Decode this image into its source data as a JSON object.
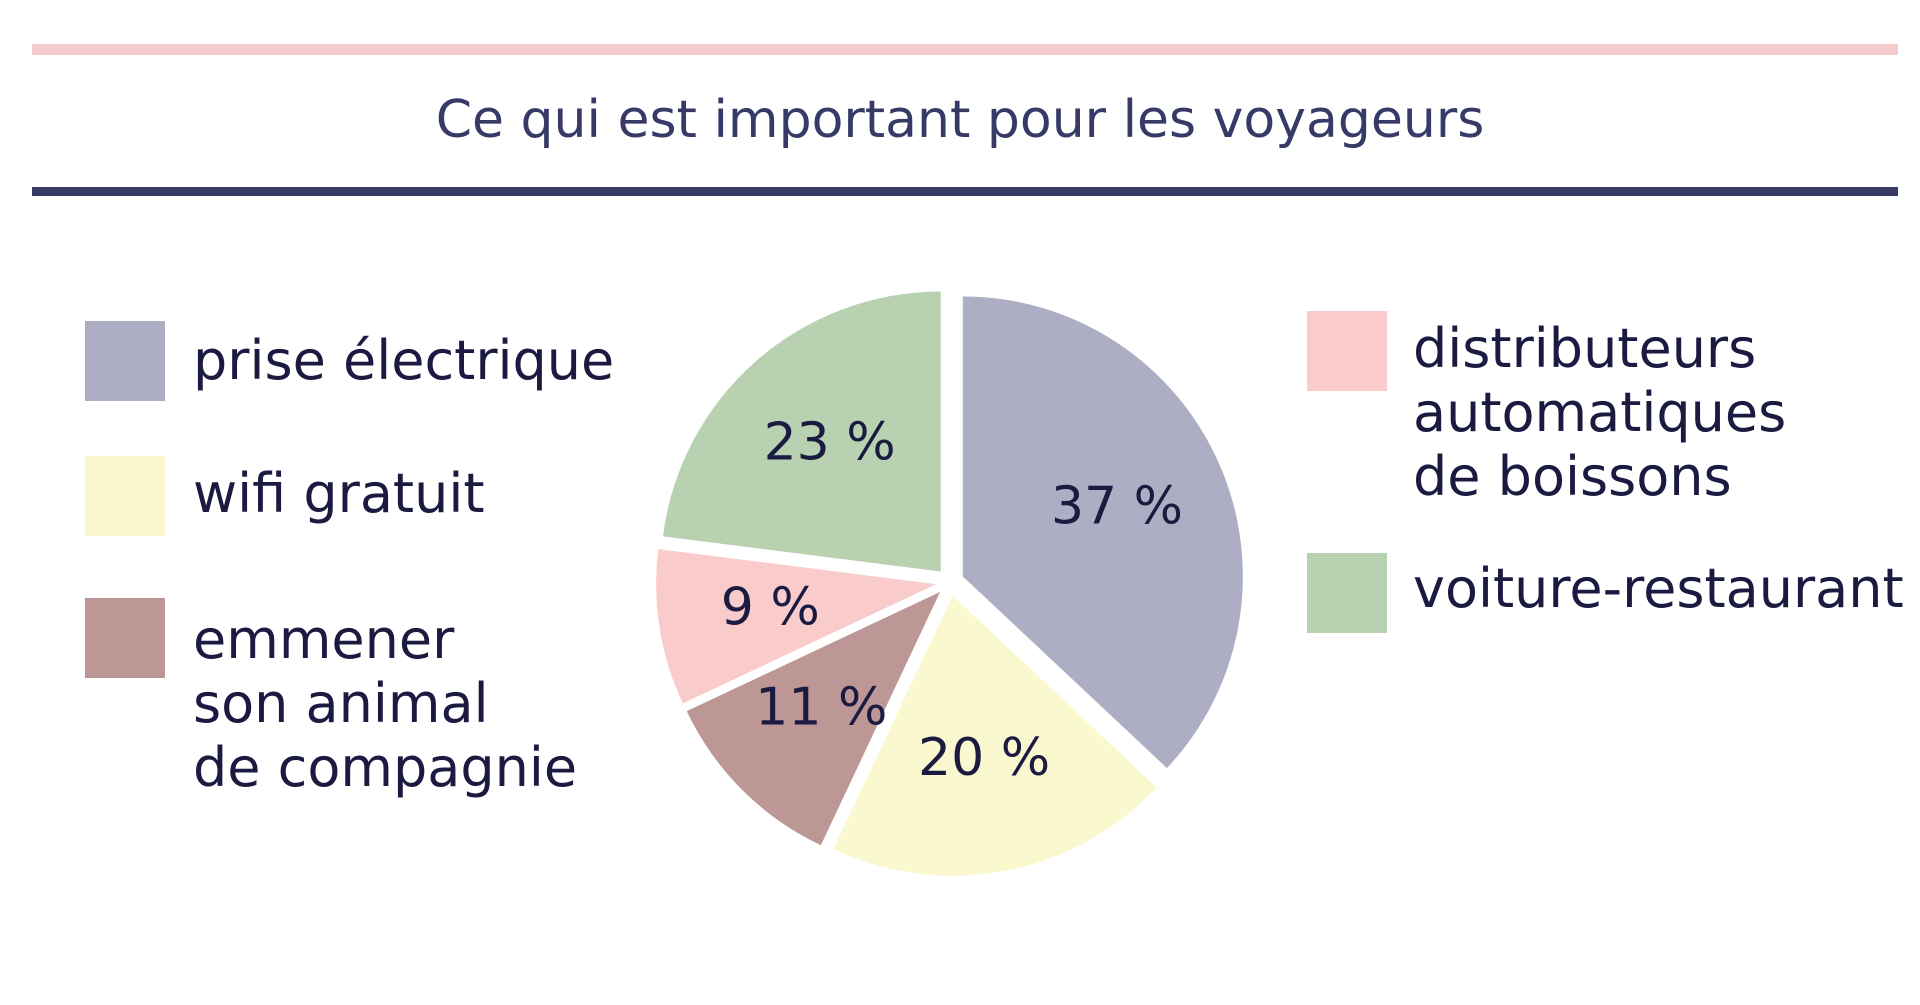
{
  "chart_data": {
    "type": "pie",
    "title": "Ce qui est important pour les voyageurs",
    "slices": [
      {
        "name": "prise électrique",
        "value": 37,
        "label": "37 %",
        "color": "#adadc3"
      },
      {
        "name": "wifi gratuit",
        "value": 20,
        "label": "20 %",
        "color": "#faf8ce"
      },
      {
        "name": "emmener\nson animal\nde compagnie",
        "value": 11,
        "label": "11 %",
        "color": "#bd9796"
      },
      {
        "name": "distributeurs\nautomatiques\nde boissons",
        "value": 9,
        "label": "9 %",
        "color": "#f9cbcb"
      },
      {
        "name": "voiture-restaurant",
        "value": 23,
        "label": "23 %",
        "color": "#b8d1b1"
      }
    ],
    "legend": [
      {
        "text": "prise électrique",
        "color": "#adadc3"
      },
      {
        "text": "wifi gratuit",
        "color": "#faf8ce"
      },
      {
        "text": "emmener\nson animal\nde compagnie",
        "color": "#bd9796"
      },
      {
        "text": "distributeurs\nautomatiques\nde boissons",
        "color": "#f9cbcb"
      },
      {
        "text": "voiture-restaurant",
        "color": "#b8d1b1"
      }
    ]
  },
  "colors": {
    "top_rule": "#f6cbcb",
    "bottom_rule": "#373a66",
    "title_text": "#373a66",
    "text": "#1b1a40"
  }
}
